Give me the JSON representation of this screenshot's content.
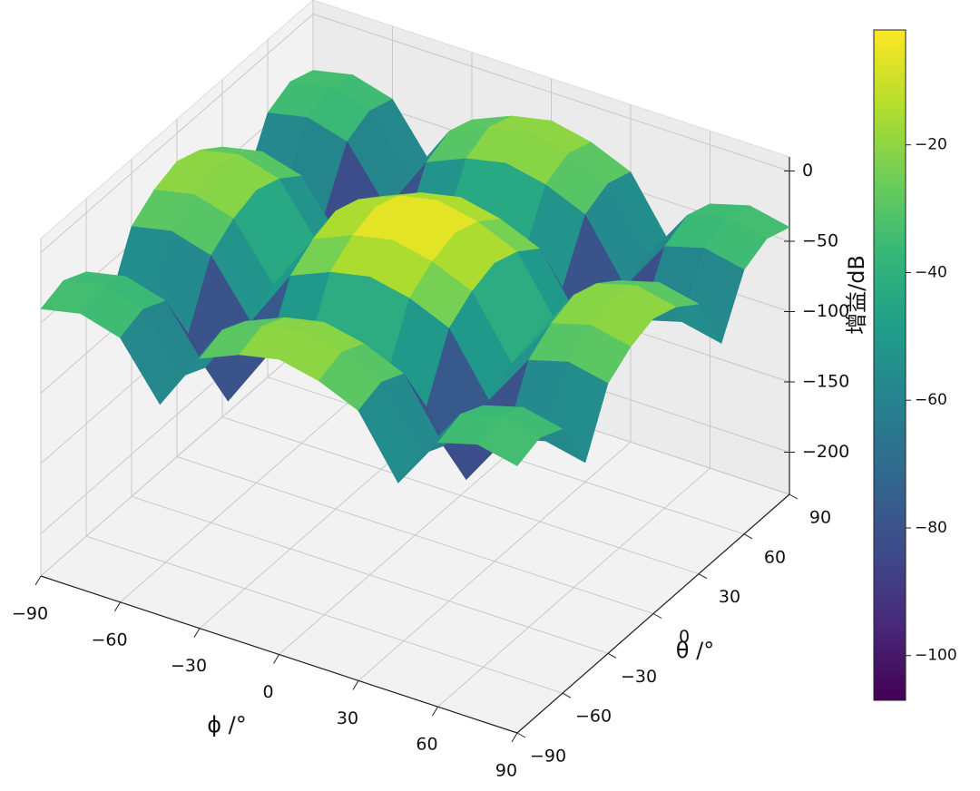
{
  "chart_data": {
    "type": "surface3d",
    "xlabel": "ϕ /°",
    "ylabel": "θ /°",
    "colorbar_label": "增益/dB",
    "x": [
      -90,
      -75,
      -60,
      -45,
      -30,
      -15,
      0,
      15,
      30,
      45,
      60,
      75,
      90
    ],
    "y": [
      -90,
      -75,
      -60,
      -45,
      -30,
      -15,
      0,
      15,
      30,
      45,
      60,
      75,
      90
    ],
    "z": [
      [
        -40,
        -34,
        -42,
        -80,
        -38,
        -26,
        -20,
        -26,
        -38,
        -80,
        -42,
        -34,
        -40
      ],
      [
        -34,
        -28,
        -36,
        -74,
        -32,
        -20,
        -14,
        -20,
        -32,
        -74,
        -36,
        -28,
        -34
      ],
      [
        -42,
        -36,
        -44,
        -82,
        -40,
        -28,
        -22,
        -28,
        -40,
        -82,
        -44,
        -36,
        -42
      ],
      [
        -80,
        -74,
        -82,
        -120,
        -78,
        -66,
        -60,
        -66,
        -78,
        -120,
        -82,
        -74,
        -80
      ],
      [
        -38,
        -32,
        -40,
        -78,
        -36,
        -24,
        -18,
        -24,
        -36,
        -78,
        -40,
        -32,
        -38
      ],
      [
        -26,
        -20,
        -28,
        -66,
        -24,
        -12,
        -6,
        -12,
        -24,
        -66,
        -28,
        -20,
        -26
      ],
      [
        -20,
        -14,
        -22,
        -60,
        -18,
        -6,
        0,
        -6,
        -18,
        -60,
        -22,
        -14,
        -20
      ],
      [
        -26,
        -20,
        -28,
        -66,
        -24,
        -12,
        -6,
        -12,
        -24,
        -66,
        -28,
        -20,
        -26
      ],
      [
        -38,
        -32,
        -40,
        -78,
        -36,
        -24,
        -18,
        -24,
        -36,
        -78,
        -40,
        -32,
        -38
      ],
      [
        -80,
        -74,
        -82,
        -120,
        -78,
        -66,
        -60,
        -66,
        -78,
        -120,
        -82,
        -74,
        -80
      ],
      [
        -42,
        -36,
        -44,
        -82,
        -40,
        -28,
        -22,
        -28,
        -40,
        -82,
        -44,
        -36,
        -42
      ],
      [
        -34,
        -28,
        -36,
        -74,
        -32,
        -20,
        -14,
        -20,
        -32,
        -74,
        -36,
        -28,
        -34
      ],
      [
        -40,
        -34,
        -42,
        -80,
        -38,
        -26,
        -20,
        -26,
        -38,
        -80,
        -42,
        -34,
        -40
      ]
    ],
    "xlim": [
      -90,
      90
    ],
    "ylim": [
      -90,
      90
    ],
    "zlim": [
      -230,
      10
    ],
    "xticks": [
      {
        "value": -90,
        "label": "−90"
      },
      {
        "value": -60,
        "label": "−60"
      },
      {
        "value": -30,
        "label": "−30"
      },
      0,
      30,
      60,
      90
    ],
    "yticks": [
      {
        "value": -90,
        "label": "−90"
      },
      {
        "value": -60,
        "label": "−60"
      },
      {
        "value": -30,
        "label": "−30"
      },
      0,
      30,
      60,
      90
    ],
    "zticks": [
      0,
      {
        "value": -50,
        "label": "−50"
      },
      {
        "value": -100,
        "label": "−100"
      },
      {
        "value": -150,
        "label": "−150"
      },
      {
        "value": -200,
        "label": "−200"
      }
    ],
    "colormap": "viridis",
    "clim": [
      -107,
      -2
    ],
    "cticks": [
      {
        "value": -20,
        "label": "−20"
      },
      {
        "value": -40,
        "label": "−40"
      },
      {
        "value": -60,
        "label": "−60"
      },
      {
        "value": -80,
        "label": "−80"
      },
      {
        "value": -100,
        "label": "−100"
      }
    ],
    "grid": true
  }
}
